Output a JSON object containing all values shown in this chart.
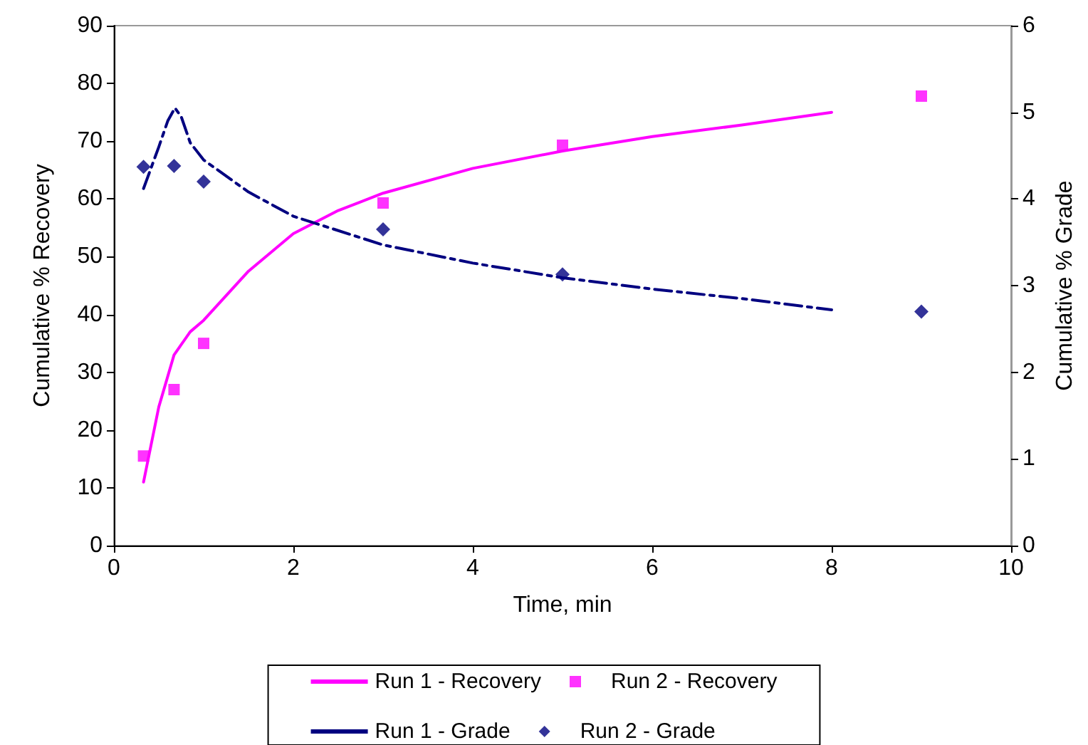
{
  "chart_data": {
    "type": "line",
    "xlabel": "Time, min",
    "ylabel": "Cumulative % Recovery",
    "y2label": "Cumulative % Grade",
    "xlim": [
      0,
      10
    ],
    "xticks": [
      0,
      2,
      4,
      6,
      8,
      10
    ],
    "ylim": [
      0,
      90
    ],
    "yticks": [
      0,
      10,
      20,
      30,
      40,
      50,
      60,
      70,
      80,
      90
    ],
    "y2lim": [
      0,
      6
    ],
    "y2ticks": [
      0,
      1,
      2,
      3,
      4,
      5,
      6
    ],
    "grid": false,
    "legend": "bottom",
    "series": [
      {
        "name": "Run 1 - Recovery",
        "color": "#ff00ff",
        "marker": "none",
        "line_style": "solid",
        "x": [
          0.33,
          0.5,
          0.67,
          0.85,
          1,
          1.5,
          2,
          2.5,
          3,
          4,
          5,
          6,
          7,
          8
        ],
        "values": [
          11,
          24,
          33,
          37,
          39,
          47.5,
          54,
          58,
          61,
          65.3,
          68.3,
          70.8,
          72.8,
          75
        ]
      },
      {
        "name": "Run 2 - Recovery",
        "type": "scatter",
        "color": "#ff00ff",
        "marker": "square",
        "x": [
          0.33,
          0.67,
          1,
          3,
          5,
          9
        ],
        "values": [
          15.5,
          27,
          35,
          59.3,
          69.3,
          77.8
        ]
      },
      {
        "name": "Run 1 - Grade",
        "axis": "y2",
        "color": "#000080",
        "marker": "none",
        "line_style": "dashed",
        "x": [
          0.33,
          0.5,
          0.6,
          0.68,
          0.75,
          0.85,
          1,
          1.5,
          2,
          3,
          4,
          5,
          6,
          7,
          8
        ],
        "values": [
          4.12,
          4.6,
          4.9,
          5.05,
          4.95,
          4.65,
          4.45,
          4.08,
          3.8,
          3.47,
          3.26,
          3.09,
          2.96,
          2.85,
          2.72
        ]
      },
      {
        "name": "Run 2 - Grade",
        "type": "scatter",
        "axis": "y2",
        "color": "#000080",
        "marker": "diamond",
        "x": [
          0.33,
          0.67,
          1,
          3,
          5,
          9
        ],
        "values": [
          4.37,
          4.38,
          4.2,
          3.65,
          3.13,
          2.7
        ]
      }
    ]
  }
}
